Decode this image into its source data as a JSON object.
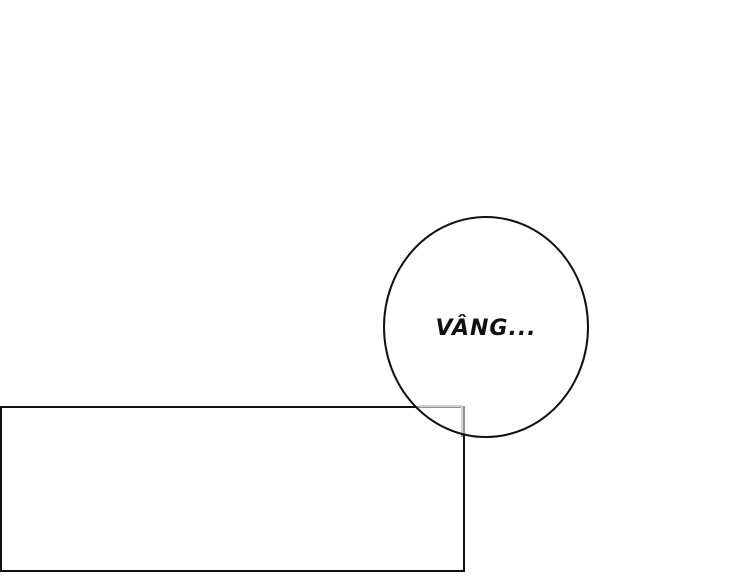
{
  "speech_bubble": {
    "text": "VÂNG..."
  }
}
